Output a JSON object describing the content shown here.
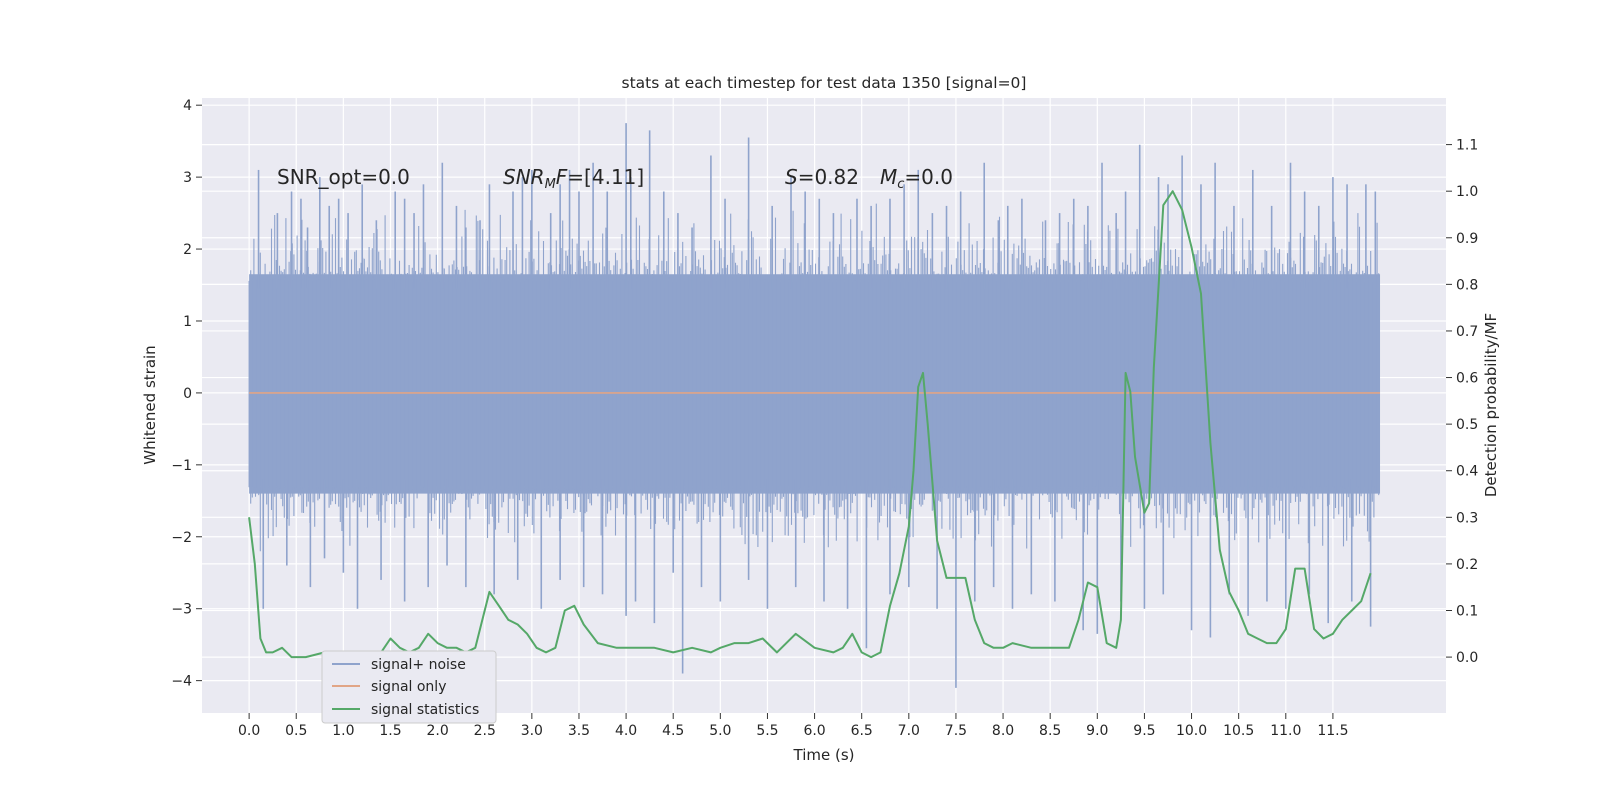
{
  "chart_data": {
    "type": "line",
    "title": "stats at each timestep for test data 1350 [signal=0]",
    "xlabel": "Time (s)",
    "ylabel": "Whitened strain",
    "y2label": "Detection probability/MF",
    "xlim": [
      -0.5,
      12.7
    ],
    "ylim": [
      -4.45,
      4.1
    ],
    "y2lim": [
      -0.12,
      1.2
    ],
    "x_ticks": [
      "0.0",
      "0.5",
      "1.0",
      "1.5",
      "2.0",
      "2.5",
      "3.0",
      "3.5",
      "4.0",
      "4.5",
      "5.0",
      "5.5",
      "6.0",
      "6.5",
      "7.0",
      "7.5",
      "8.0",
      "8.5",
      "9.0",
      "9.5",
      "10.0",
      "10.5",
      "11.0",
      "11.5"
    ],
    "y_ticks": [
      "4",
      "3",
      "2",
      "1",
      "0",
      "−1",
      "−2",
      "−3",
      "−4"
    ],
    "y2_ticks": [
      "1.1",
      "1.0",
      "0.9",
      "0.8",
      "0.7",
      "0.6",
      "0.5",
      "0.4",
      "0.3",
      "0.2",
      "0.1",
      "0.0"
    ],
    "grid": true,
    "legend_position": "lower-left",
    "annotations": {
      "snr_opt": "SNR_opt=0.0",
      "snr_mf_sym": "SNR",
      "snr_mf_sub": "M",
      "snr_mf_rest": "F=[4.11]",
      "s_sym": "S",
      "s_rest": "=0.82",
      "mc_sym": "M",
      "mc_sub": "c",
      "mc_rest": "=0.0"
    },
    "series": [
      {
        "name": "signal+ noise",
        "color": "#8fa3cc",
        "axis": "left",
        "x_range": [
          0.0,
          12.0
        ],
        "envelope": [
          -1.4,
          1.65
        ],
        "peak_x": [
          0.1,
          0.3,
          0.45,
          0.55,
          0.62,
          0.75,
          0.85,
          0.95,
          1.05,
          1.2,
          1.35,
          1.55,
          1.65,
          1.75,
          1.85,
          2.05,
          2.2,
          2.3,
          2.45,
          2.55,
          2.8,
          2.9,
          3.0,
          3.2,
          3.3,
          3.4,
          3.5,
          3.65,
          3.8,
          4.0,
          4.05,
          4.25,
          4.4,
          4.55,
          4.7,
          4.9,
          5.05,
          5.3,
          5.55,
          5.75,
          5.9,
          6.05,
          6.2,
          6.45,
          6.6,
          6.8,
          6.95,
          7.1,
          7.25,
          7.4,
          7.55,
          7.8,
          7.95,
          8.05,
          8.2,
          8.45,
          8.6,
          8.75,
          8.9,
          9.05,
          9.2,
          9.3,
          9.45,
          9.65,
          9.75,
          9.9,
          10.1,
          10.25,
          10.45,
          10.65,
          10.85,
          11.05,
          11.2,
          11.35,
          11.5,
          11.65,
          11.85,
          11.95
        ],
        "peak_y": [
          3.1,
          2.5,
          2.8,
          2.7,
          2.3,
          3.0,
          2.6,
          2.7,
          2.5,
          2.9,
          2.4,
          2.8,
          2.7,
          2.5,
          2.9,
          3.2,
          2.6,
          2.3,
          2.4,
          2.9,
          2.8,
          3.0,
          3.1,
          2.5,
          2.9,
          3.1,
          2.8,
          3.2,
          2.8,
          3.75,
          3.0,
          3.65,
          2.8,
          2.5,
          2.3,
          3.3,
          2.7,
          3.55,
          2.6,
          3.0,
          2.8,
          2.7,
          2.5,
          2.7,
          2.6,
          2.7,
          2.9,
          3.1,
          2.5,
          2.6,
          2.8,
          3.2,
          2.4,
          2.6,
          2.7,
          2.4,
          2.5,
          2.7,
          2.6,
          3.2,
          2.5,
          2.8,
          3.45,
          3.0,
          2.9,
          3.3,
          2.9,
          3.2,
          2.6,
          3.1,
          2.6,
          3.2,
          2.8,
          2.6,
          3.0,
          2.9,
          2.9,
          2.8
        ],
        "trough_x": [
          0.15,
          0.4,
          0.65,
          0.8,
          1.0,
          1.15,
          1.4,
          1.65,
          1.9,
          2.1,
          2.3,
          2.6,
          2.85,
          3.1,
          3.3,
          3.55,
          3.75,
          4.0,
          4.1,
          4.3,
          4.5,
          4.6,
          4.8,
          5.0,
          5.3,
          5.5,
          5.8,
          6.1,
          6.35,
          6.55,
          6.8,
          7.0,
          7.3,
          7.5,
          7.7,
          7.9,
          8.1,
          8.3,
          8.55,
          8.85,
          9.0,
          9.25,
          9.5,
          9.7,
          10.0,
          10.2,
          10.4,
          10.6,
          10.8,
          11.0,
          11.25,
          11.45,
          11.7,
          11.9
        ],
        "trough_y": [
          -3.0,
          -2.4,
          -2.7,
          -2.3,
          -2.5,
          -3.0,
          -2.6,
          -2.9,
          -2.7,
          -2.4,
          -2.7,
          -2.8,
          -2.6,
          -3.0,
          -2.6,
          -2.7,
          -2.8,
          -3.1,
          -2.9,
          -3.2,
          -2.5,
          -3.9,
          -2.7,
          -2.9,
          -2.6,
          -3.0,
          -2.7,
          -2.9,
          -3.0,
          -3.55,
          -2.8,
          -2.7,
          -3.0,
          -4.1,
          -2.9,
          -2.7,
          -3.0,
          -2.8,
          -2.9,
          -3.3,
          -3.35,
          -2.9,
          -3.0,
          -2.8,
          -3.3,
          -3.4,
          -2.8,
          -3.1,
          -2.9,
          -3.0,
          -2.8,
          -3.2,
          -2.9,
          -3.25
        ]
      },
      {
        "name": "signal only",
        "color": "#e1a586",
        "axis": "left",
        "x": [
          0.0,
          12.0
        ],
        "y": [
          0.0,
          0.0
        ]
      },
      {
        "name": "signal statistics",
        "color": "#55a868",
        "axis": "right",
        "x": [
          0.0,
          0.06,
          0.12,
          0.18,
          0.25,
          0.35,
          0.45,
          0.6,
          0.8,
          1.0,
          1.2,
          1.4,
          1.5,
          1.6,
          1.7,
          1.8,
          1.9,
          2.0,
          2.1,
          2.2,
          2.3,
          2.4,
          2.45,
          2.55,
          2.65,
          2.75,
          2.85,
          2.95,
          3.05,
          3.15,
          3.25,
          3.35,
          3.45,
          3.55,
          3.7,
          3.9,
          4.1,
          4.3,
          4.5,
          4.7,
          4.9,
          5.0,
          5.15,
          5.3,
          5.45,
          5.6,
          5.8,
          6.0,
          6.2,
          6.3,
          6.4,
          6.5,
          6.6,
          6.7,
          6.8,
          6.9,
          7.0,
          7.05,
          7.1,
          7.15,
          7.2,
          7.3,
          7.4,
          7.5,
          7.6,
          7.7,
          7.8,
          7.9,
          8.0,
          8.1,
          8.3,
          8.6,
          8.7,
          8.8,
          8.9,
          9.0,
          9.1,
          9.2,
          9.25,
          9.3,
          9.35,
          9.4,
          9.5,
          9.55,
          9.6,
          9.7,
          9.8,
          9.9,
          10.0,
          10.1,
          10.2,
          10.3,
          10.4,
          10.5,
          10.6,
          10.7,
          10.8,
          10.9,
          11.0,
          11.1,
          11.2,
          11.3,
          11.4,
          11.5,
          11.6,
          11.7,
          11.8,
          11.9
        ],
        "y": [
          0.3,
          0.2,
          0.04,
          0.01,
          0.01,
          0.02,
          0.0,
          0.0,
          0.01,
          0.01,
          0.01,
          0.01,
          0.04,
          0.02,
          0.01,
          0.02,
          0.05,
          0.03,
          0.02,
          0.02,
          0.01,
          0.02,
          0.06,
          0.14,
          0.11,
          0.08,
          0.07,
          0.05,
          0.02,
          0.01,
          0.02,
          0.1,
          0.11,
          0.07,
          0.03,
          0.02,
          0.02,
          0.02,
          0.01,
          0.02,
          0.01,
          0.02,
          0.03,
          0.03,
          0.04,
          0.01,
          0.05,
          0.02,
          0.01,
          0.02,
          0.05,
          0.01,
          0.0,
          0.01,
          0.11,
          0.18,
          0.28,
          0.4,
          0.58,
          0.61,
          0.5,
          0.25,
          0.17,
          0.17,
          0.17,
          0.08,
          0.03,
          0.02,
          0.02,
          0.03,
          0.02,
          0.02,
          0.02,
          0.08,
          0.16,
          0.15,
          0.03,
          0.02,
          0.08,
          0.61,
          0.57,
          0.43,
          0.31,
          0.33,
          0.62,
          0.97,
          1.0,
          0.96,
          0.88,
          0.78,
          0.46,
          0.23,
          0.14,
          0.1,
          0.05,
          0.04,
          0.03,
          0.03,
          0.06,
          0.19,
          0.19,
          0.06,
          0.04,
          0.05,
          0.08,
          0.1,
          0.12,
          0.18
        ]
      }
    ]
  }
}
